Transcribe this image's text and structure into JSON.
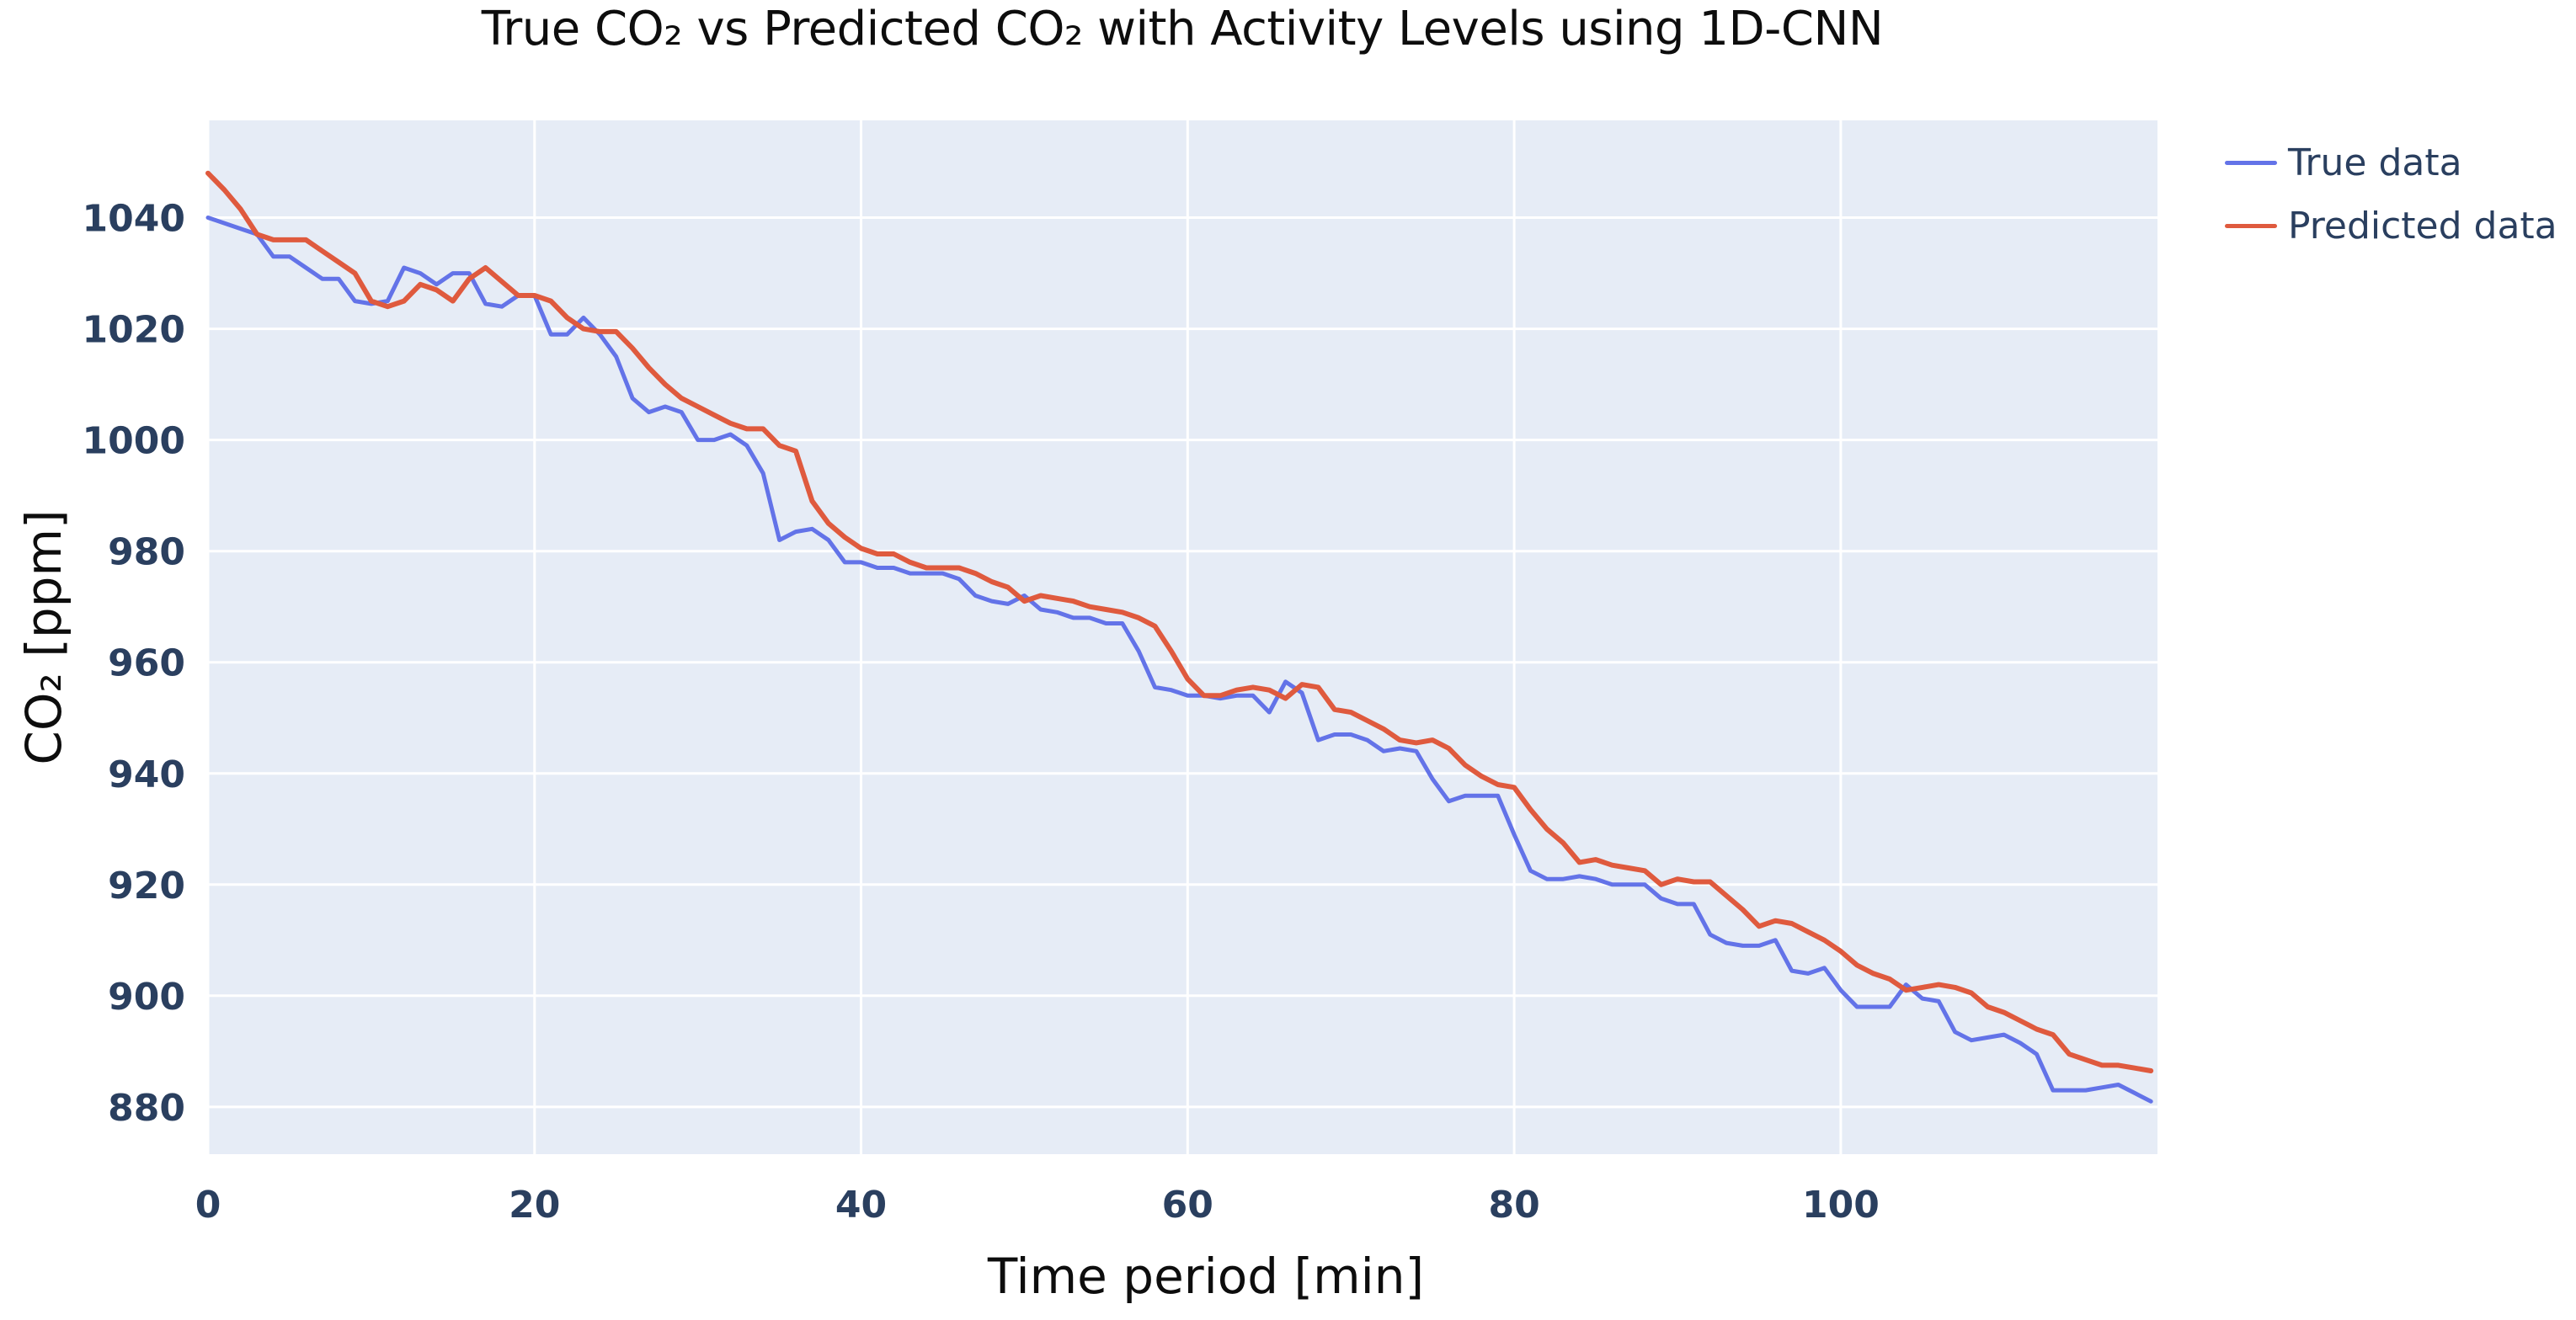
{
  "title": "True CO₂ vs Predicted CO₂ with Activity Levels using 1D-CNN",
  "axes": {
    "x_label": "Time period [min]",
    "y_label": "CO₂ [ppm]",
    "x_ticks": [
      0,
      20,
      40,
      60,
      80,
      100
    ],
    "y_ticks": [
      880,
      900,
      920,
      940,
      960,
      980,
      1000,
      1020,
      1040
    ]
  },
  "legend": {
    "items": [
      {
        "label": "True data",
        "color": "#6373e8"
      },
      {
        "label": "Predicted data",
        "color": "#df5a3e"
      }
    ]
  },
  "colors": {
    "plot_bg": "#e6ecf6",
    "grid": "#ffffff",
    "tick_text": "#2a3f5f",
    "title_text": "#0d0d0d"
  },
  "chart_data": {
    "type": "line",
    "title": "True CO₂ vs Predicted CO₂ with Activity Levels using 1D-CNN",
    "xlabel": "Time period [min]",
    "ylabel": "CO₂ [ppm]",
    "grid": true,
    "legend_position": "top-right-outside",
    "x_start": 0,
    "x_step": 1,
    "x_range": [
      0,
      119.4
    ],
    "y_range": [
      871.5,
      1057.5
    ],
    "series": [
      {
        "name": "True data",
        "color": "#6373e8",
        "stroke_width": 5,
        "values": [
          1040,
          1039,
          1038,
          1037,
          1033,
          1033,
          1031,
          1029,
          1029,
          1025,
          1024.5,
          1025,
          1031,
          1030,
          1028,
          1030,
          1030,
          1024.5,
          1024,
          1026,
          1026,
          1019,
          1019,
          1022,
          1019,
          1015,
          1007.5,
          1005,
          1006,
          1005,
          1000,
          1000,
          1001,
          999,
          994,
          982,
          983.5,
          984,
          982,
          978,
          978,
          977,
          977,
          976,
          976,
          976,
          975,
          972,
          971,
          970.5,
          972,
          969.5,
          969,
          968,
          968,
          967,
          967,
          962,
          955.5,
          955,
          954,
          954,
          953.5,
          954,
          954,
          951,
          956.5,
          954.5,
          946,
          947,
          947,
          946,
          944,
          944.5,
          944,
          939,
          935,
          936,
          936,
          936,
          929,
          922.5,
          921,
          921,
          921.5,
          921,
          920,
          920,
          920,
          917.5,
          916.5,
          916.5,
          911,
          909.5,
          909,
          909,
          910,
          904.5,
          904,
          905,
          901,
          898,
          898,
          898,
          902,
          899.5,
          899,
          893.5,
          892,
          892.5,
          893,
          891.5,
          889.5,
          883,
          883,
          883,
          883.5,
          884,
          882.5,
          881
        ]
      },
      {
        "name": "Predicted data",
        "color": "#df5a3e",
        "stroke_width": 6,
        "values": [
          1048,
          1045,
          1041.5,
          1037,
          1036,
          1036,
          1036,
          1034,
          1032,
          1030,
          1025,
          1024,
          1025,
          1028,
          1027,
          1025,
          1029,
          1031,
          1028.5,
          1026,
          1026,
          1025,
          1022,
          1020,
          1019.5,
          1019.5,
          1016.5,
          1013,
          1010,
          1007.5,
          1006,
          1004.5,
          1003,
          1002,
          1002,
          999,
          998,
          989,
          985,
          982.5,
          980.5,
          979.5,
          979.5,
          978,
          977,
          977,
          977,
          976,
          974.5,
          973.5,
          971,
          972,
          971.5,
          971,
          970,
          969.5,
          969,
          968,
          966.5,
          962,
          957,
          954,
          954,
          955,
          955.5,
          955,
          953.5,
          956,
          955.5,
          951.5,
          951,
          949.5,
          948,
          946,
          945.5,
          946,
          944.5,
          941.5,
          939.5,
          938,
          937.5,
          933.5,
          930,
          927.5,
          924,
          924.5,
          923.5,
          923,
          922.5,
          920,
          921,
          920.5,
          920.5,
          918,
          915.5,
          912.5,
          913.5,
          913,
          911.5,
          910,
          908,
          905.5,
          904,
          903,
          901,
          901.5,
          902,
          901.5,
          900.5,
          898,
          897,
          895.5,
          894,
          893,
          889.5,
          888.5,
          887.5,
          887.5,
          887,
          886.5
        ]
      }
    ]
  }
}
